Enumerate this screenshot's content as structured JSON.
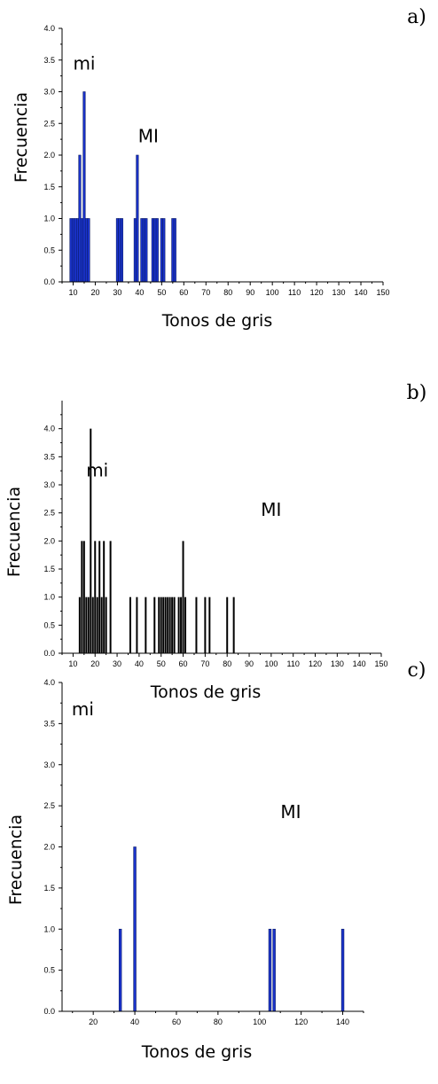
{
  "chart_data": [
    {
      "type": "bar",
      "panel_label": "a)",
      "xlabel": "Tonos de gris",
      "ylabel": "Frecuencia",
      "xlim": [
        5,
        150
      ],
      "ylim": [
        0,
        4
      ],
      "xticks": [
        10,
        20,
        30,
        40,
        50,
        60,
        70,
        80,
        90,
        100,
        110,
        120,
        130,
        140,
        150
      ],
      "yticks": [
        0.0,
        0.5,
        1.0,
        1.5,
        2.0,
        2.5,
        3.0,
        3.5,
        4.0
      ],
      "ytick_labels": [
        "0.0",
        "0.5",
        "1.0",
        "1.5",
        "2.0",
        "2.5",
        "3.0",
        "3.5",
        "4.0"
      ],
      "bar_width": 1,
      "bar_style": "filled",
      "color": "#1a33cc",
      "x": [
        9,
        10,
        11,
        12,
        13,
        14,
        15,
        16,
        17,
        30,
        31,
        32,
        38,
        39,
        41,
        42,
        43,
        46,
        47,
        48,
        50,
        51,
        55,
        56
      ],
      "values": [
        1,
        1,
        1,
        1,
        2,
        1,
        3,
        1,
        1,
        1,
        1,
        1,
        1,
        2,
        1,
        1,
        1,
        1,
        1,
        1,
        1,
        1,
        1,
        1
      ],
      "annotations": [
        {
          "text": "mi",
          "x": 15,
          "y": 3.35
        },
        {
          "text": "MI",
          "x": 44,
          "y": 2.2
        }
      ]
    },
    {
      "type": "bar",
      "panel_label": "b)",
      "xlabel": "Tonos de gris",
      "ylabel": "Frecuencia",
      "xlim": [
        5,
        150
      ],
      "ylim": [
        0,
        4.5
      ],
      "xticks": [
        10,
        20,
        30,
        40,
        50,
        60,
        70,
        80,
        90,
        100,
        110,
        120,
        130,
        140,
        150
      ],
      "yticks": [
        0.0,
        0.5,
        1.0,
        1.5,
        2.0,
        2.5,
        3.0,
        3.5,
        4.0
      ],
      "ytick_labels": [
        "0.0",
        "0.5",
        "1.0",
        "1.5",
        "2.0",
        "2.5",
        "3.0",
        "3.5",
        "4.0"
      ],
      "bar_width": 0.5,
      "bar_style": "lines",
      "color": "#000000",
      "x": [
        13,
        14,
        15,
        16,
        17,
        18,
        19,
        20,
        21,
        22,
        23,
        24,
        25,
        27,
        36,
        39,
        43,
        47,
        49,
        50,
        51,
        52,
        53,
        54,
        55,
        56,
        58,
        59,
        60,
        61,
        66,
        70,
        72,
        80,
        83
      ],
      "values": [
        1,
        2,
        2,
        1,
        1,
        4,
        1,
        2,
        1,
        2,
        1,
        2,
        1,
        2,
        1,
        1,
        1,
        1,
        1,
        1,
        1,
        1,
        1,
        1,
        1,
        1,
        1,
        1,
        2,
        1,
        1,
        1,
        1,
        1,
        1
      ],
      "annotations": [
        {
          "text": "mi",
          "x": 21,
          "y": 3.15
        },
        {
          "text": "MI",
          "x": 100,
          "y": 2.45
        }
      ]
    },
    {
      "type": "bar",
      "panel_label": "c)",
      "xlabel": "Tonos de gris",
      "ylabel": "Frecuencia",
      "xlim": [
        5,
        150
      ],
      "ylim": [
        0,
        4
      ],
      "xticks": [
        20,
        40,
        60,
        80,
        100,
        120,
        140
      ],
      "yticks": [
        0.0,
        0.5,
        1.0,
        1.5,
        2.0,
        2.5,
        3.0,
        3.5,
        4.0
      ],
      "ytick_labels": [
        "0.0",
        "0.5",
        "1.0",
        "1.5",
        "2.0",
        "2.5",
        "3.0",
        "3.5",
        "4.0"
      ],
      "bar_width": 1.2,
      "bar_style": "filled",
      "color": "#1a33cc",
      "x": [
        33,
        40,
        105,
        107,
        140
      ],
      "values": [
        1,
        2,
        1,
        1,
        1
      ],
      "annotations": [
        {
          "text": "mi",
          "x": 15,
          "y": 3.6
        },
        {
          "text": "MI",
          "x": 115,
          "y": 2.35
        }
      ]
    }
  ]
}
